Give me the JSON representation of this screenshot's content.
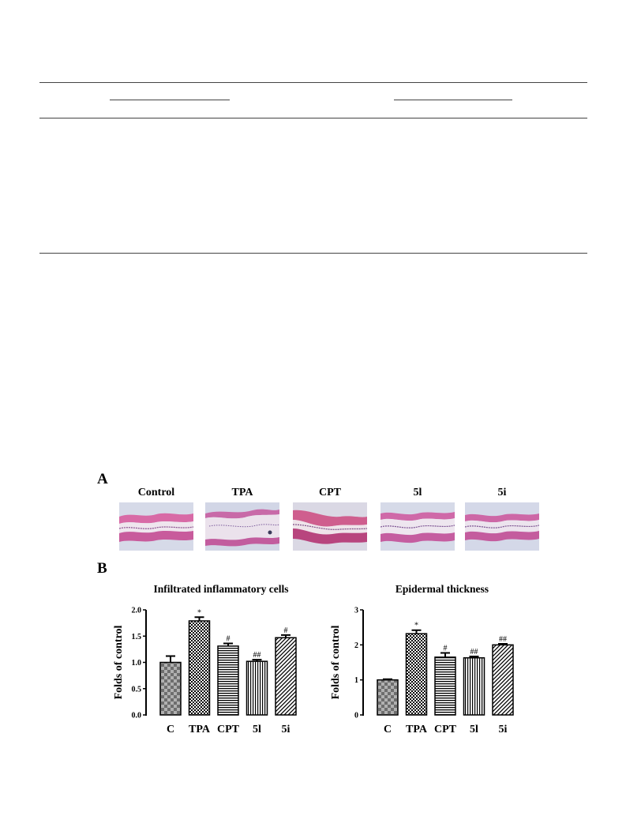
{
  "figure": {
    "panel_a": "A",
    "panel_b": "B",
    "image_labels": [
      "Control",
      "TPA",
      "CPT",
      "5l",
      "5i"
    ]
  },
  "chart_data": [
    {
      "type": "bar",
      "title": "Infiltrated inflammatory cells",
      "ylabel": "Folds of control",
      "categories": [
        "C",
        "TPA",
        "CPT",
        "5l",
        "5i"
      ],
      "values": [
        1.0,
        1.79,
        1.31,
        1.02,
        1.47
      ],
      "errors": [
        0.12,
        0.07,
        0.05,
        0.03,
        0.05
      ],
      "annotations": [
        "",
        "*",
        "#",
        "##",
        "#"
      ],
      "ylim": [
        0,
        2.0
      ],
      "yticks": [
        "0.0",
        "0.5",
        "1.0",
        "1.5",
        "2.0"
      ],
      "patterns": [
        "checker",
        "dense-checker",
        "horizontal",
        "vertical",
        "diagonal"
      ]
    },
    {
      "type": "bar",
      "title": "Epidermal thickness",
      "ylabel": "Folds of control",
      "categories": [
        "C",
        "TPA",
        "CPT",
        "5l",
        "5i"
      ],
      "values": [
        1.0,
        2.32,
        1.65,
        1.63,
        2.0
      ],
      "errors": [
        0.02,
        0.1,
        0.12,
        0.04,
        0.03
      ],
      "annotations": [
        "",
        "*",
        "#",
        "##",
        "##"
      ],
      "ylim": [
        0,
        3
      ],
      "yticks": [
        "0",
        "1",
        "2",
        "3"
      ],
      "patterns": [
        "checker",
        "dense-checker",
        "horizontal",
        "vertical",
        "diagonal"
      ]
    }
  ]
}
